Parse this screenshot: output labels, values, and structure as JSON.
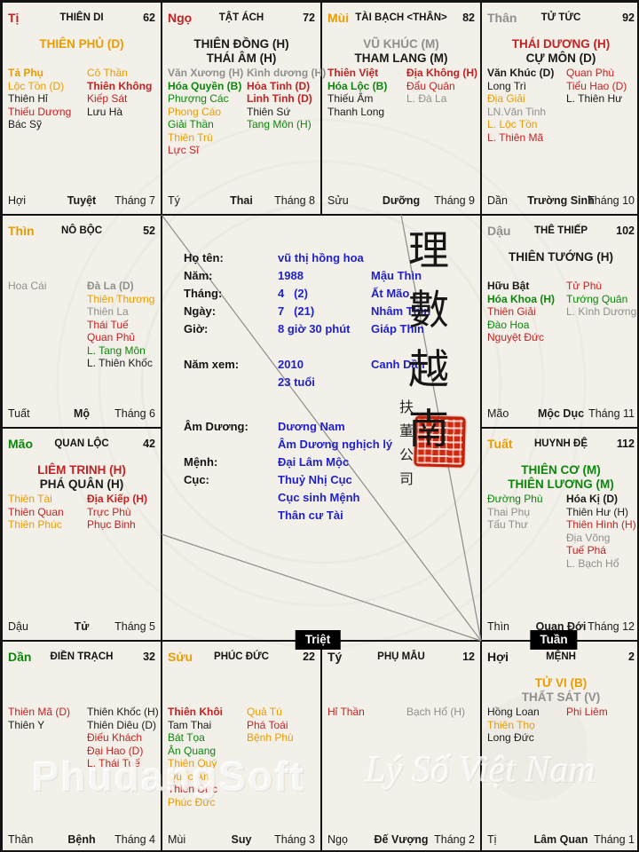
{
  "meta": {
    "colors": {
      "red": "#c32222",
      "orange": "#ea9c00",
      "green": "#0c870c",
      "gray": "#8f8f8f",
      "black": "#1a1a1a",
      "blue": "#2121cc"
    }
  },
  "badges": {
    "triet": "Triệt",
    "tuan": "Tuần"
  },
  "watermarks": {
    "left": "PhudangSoft",
    "right": "Lý Số Việt Nam"
  },
  "center": {
    "calligraphy": [
      "理",
      "數",
      "越",
      "南"
    ],
    "side_text": "扶董公司",
    "groups": [
      {
        "rows": [
          {
            "label": "Họ tên:",
            "value": "vũ thị hồng hoa",
            "note": ""
          },
          {
            "label": "Năm:",
            "value": "1988",
            "note": "Mậu Thìn"
          },
          {
            "label": "Tháng:",
            "value": "4   (2)",
            "note": "Ất Mão"
          },
          {
            "label": "Ngày:",
            "value": "7   (21)",
            "note": "Nhâm Thìn"
          },
          {
            "label": "Giờ:",
            "value": "8 giờ 30 phút",
            "note": "Giáp Thìn"
          }
        ]
      },
      {
        "rows": [
          {
            "label": "Năm xem:",
            "value": "2010",
            "note": "Canh Dần"
          },
          {
            "label": "",
            "value": "23 tuổi",
            "note": ""
          }
        ]
      },
      {
        "rows": [
          {
            "label": "Âm Dương:",
            "value": "Dương Nam",
            "note": ""
          },
          {
            "label": "",
            "value": "Âm Dương nghịch lý",
            "note": ""
          },
          {
            "label": "Mệnh:",
            "value": "Đại Lâm Mộc",
            "note": ""
          },
          {
            "label": "Cục:",
            "value": "Thuỷ Nhị Cục",
            "note": ""
          },
          {
            "label": "",
            "value": "Cục sinh Mệnh",
            "note": ""
          },
          {
            "label": "",
            "value": "Thân cư Tài",
            "note": ""
          }
        ]
      }
    ]
  },
  "palaces": [
    {
      "id": "ti",
      "col": 0,
      "row": 0,
      "branch": "Tị",
      "branch_color": "red",
      "name": "THIÊN DI",
      "number": "62",
      "mains": [
        {
          "text": "THIÊN PHỦ (D)",
          "color": "orange"
        }
      ],
      "left": [
        {
          "text": "Tả Phụ",
          "color": "orange",
          "bold": true
        },
        {
          "text": "Lộc Tồn (D)",
          "color": "orange"
        },
        {
          "text": "Thiên Hỉ",
          "color": "black"
        },
        {
          "text": "Thiếu Dương",
          "color": "red"
        },
        {
          "text": "Bác Sỹ",
          "color": "black"
        }
      ],
      "right": [
        {
          "text": "Cô Thần",
          "color": "orange"
        },
        {
          "text": "Thiên Không",
          "color": "red",
          "bold": true
        },
        {
          "text": "Kiếp Sát",
          "color": "red"
        },
        {
          "text": "Lưu Hà",
          "color": "black"
        }
      ],
      "foot": {
        "branch": "Hợi",
        "stage": "Tuyệt",
        "month": "Tháng 7"
      }
    },
    {
      "id": "ngo",
      "col": 1,
      "row": 0,
      "branch": "Ngọ",
      "branch_color": "red",
      "name": "TẬT ÁCH",
      "number": "72",
      "mains": [
        {
          "text": "THIÊN ĐỒNG (H)",
          "color": "black"
        },
        {
          "text": "THÁI ÂM (H)",
          "color": "black"
        }
      ],
      "left": [
        {
          "text": "Văn Xương (H)",
          "color": "gray",
          "bold": true
        },
        {
          "text": "Hóa Quyền (B)",
          "color": "green",
          "bold": true
        },
        {
          "text": "Phượng Các",
          "color": "green"
        },
        {
          "text": "Phong Cáo",
          "color": "orange"
        },
        {
          "text": "Giải Thần",
          "color": "green"
        },
        {
          "text": "Thiên Trù",
          "color": "orange"
        },
        {
          "text": "Lực Sĩ",
          "color": "red"
        }
      ],
      "right": [
        {
          "text": "Kình dương (H)",
          "color": "gray",
          "bold": true
        },
        {
          "text": "Hỏa Tinh (D)",
          "color": "red",
          "bold": true
        },
        {
          "text": "Linh Tinh (D)",
          "color": "red",
          "bold": true
        },
        {
          "text": "Thiên Sứ",
          "color": "black"
        },
        {
          "text": "Tang Môn (H)",
          "color": "green"
        }
      ],
      "foot": {
        "branch": "Tý",
        "stage": "Thai",
        "month": "Tháng 8"
      }
    },
    {
      "id": "mui",
      "col": 2,
      "row": 0,
      "branch": "Mùi",
      "branch_color": "orange",
      "name": "TÀI BẠCH <THÂN>",
      "number": "82",
      "mains": [
        {
          "text": "VŨ KHÚC (M)",
          "color": "gray"
        },
        {
          "text": "THAM LANG (M)",
          "color": "black"
        }
      ],
      "left": [
        {
          "text": "Thiên Việt",
          "color": "red",
          "bold": true
        },
        {
          "text": "Hóa Lộc (B)",
          "color": "green",
          "bold": true
        },
        {
          "text": "Thiếu Âm",
          "color": "black"
        },
        {
          "text": "Thanh Long",
          "color": "black"
        }
      ],
      "right": [
        {
          "text": "Địa Không (H)",
          "color": "red",
          "bold": true
        },
        {
          "text": "Đẩu Quân",
          "color": "red"
        },
        {
          "text": "L. Đà La",
          "color": "gray"
        }
      ],
      "foot": {
        "branch": "Sửu",
        "stage": "Dưỡng",
        "month": "Tháng 9"
      }
    },
    {
      "id": "than",
      "col": 3,
      "row": 0,
      "branch": "Thân",
      "branch_color": "gray",
      "name": "TỬ TỨC",
      "number": "92",
      "mains": [
        {
          "text": "THÁI DƯƠNG (H)",
          "color": "red"
        },
        {
          "text": "CỰ MÔN (D)",
          "color": "black"
        }
      ],
      "left": [
        {
          "text": "Văn Khúc (D)",
          "color": "black",
          "bold": true
        },
        {
          "text": "Long Trì",
          "color": "black"
        },
        {
          "text": "Địa Giải",
          "color": "orange"
        },
        {
          "text": "LN.Văn Tinh",
          "color": "gray"
        },
        {
          "text": "L. Lộc Tồn",
          "color": "orange"
        },
        {
          "text": "L. Thiên Mã",
          "color": "red"
        }
      ],
      "right": [
        {
          "text": "Quan Phù",
          "color": "red"
        },
        {
          "text": "Tiểu Hao (D)",
          "color": "red"
        },
        {
          "text": "L. Thiên Hư",
          "color": "black"
        }
      ],
      "foot": {
        "branch": "Dần",
        "stage": "Trường Sinh",
        "month": "Tháng 10"
      }
    },
    {
      "id": "thin",
      "col": 0,
      "row": 1,
      "branch": "Thìn",
      "branch_color": "orange",
      "name": "NÔ BỘC",
      "number": "52",
      "mains": [],
      "left": [
        {
          "text": "Hoa Cái",
          "color": "gray"
        }
      ],
      "right": [
        {
          "text": "Đà La (D)",
          "color": "gray",
          "bold": true
        },
        {
          "text": "Thiên Thương",
          "color": "orange"
        },
        {
          "text": "Thiên La",
          "color": "gray"
        },
        {
          "text": "Thái Tuế",
          "color": "red"
        },
        {
          "text": "Quan Phủ",
          "color": "red"
        },
        {
          "text": "L. Tang Môn",
          "color": "green"
        },
        {
          "text": "L. Thiên Khốc",
          "color": "black"
        }
      ],
      "foot": {
        "branch": "Tuất",
        "stage": "Mộ",
        "month": "Tháng 6"
      }
    },
    {
      "id": "dau",
      "col": 3,
      "row": 1,
      "branch": "Dậu",
      "branch_color": "gray",
      "name": "THÊ THIẾP",
      "number": "102",
      "mains": [
        {
          "text": "THIÊN TƯỚNG (H)",
          "color": "black"
        }
      ],
      "left": [
        {
          "text": "Hữu Bật",
          "color": "black",
          "bold": true
        },
        {
          "text": "Hóa Khoa (H)",
          "color": "green",
          "bold": true
        },
        {
          "text": "Thiên Giải",
          "color": "red"
        },
        {
          "text": "Đào Hoa",
          "color": "green"
        },
        {
          "text": "Nguyệt Đức",
          "color": "red"
        }
      ],
      "right": [
        {
          "text": "Tử Phù",
          "color": "red"
        },
        {
          "text": "Tướng Quân",
          "color": "green"
        },
        {
          "text": "L. Kình Dương",
          "color": "gray"
        }
      ],
      "foot": {
        "branch": "Mão",
        "stage": "Mộc Dục",
        "month": "Tháng 11"
      }
    },
    {
      "id": "mao",
      "col": 0,
      "row": 2,
      "branch": "Mão",
      "branch_color": "green",
      "name": "QUAN LỘC",
      "number": "42",
      "mains": [
        {
          "text": "LIÊM TRINH (H)",
          "color": "red"
        },
        {
          "text": "PHÁ QUÂN (H)",
          "color": "black"
        }
      ],
      "left": [
        {
          "text": "Thiên Tài",
          "color": "orange"
        },
        {
          "text": "Thiên Quan",
          "color": "red"
        },
        {
          "text": "Thiên Phúc",
          "color": "orange"
        }
      ],
      "right": [
        {
          "text": "Địa Kiếp (H)",
          "color": "red",
          "bold": true
        },
        {
          "text": "Trực Phù",
          "color": "red"
        },
        {
          "text": "Phục Binh",
          "color": "red"
        }
      ],
      "foot": {
        "branch": "Dậu",
        "stage": "Tử",
        "month": "Tháng 5"
      }
    },
    {
      "id": "tuat",
      "col": 3,
      "row": 2,
      "branch": "Tuất",
      "branch_color": "orange",
      "name": "HUYNH ĐỆ",
      "number": "112",
      "mains": [
        {
          "text": "THIÊN CƠ (M)",
          "color": "green"
        },
        {
          "text": "THIÊN LƯƠNG (M)",
          "color": "green"
        }
      ],
      "left": [
        {
          "text": "Đường Phù",
          "color": "green"
        },
        {
          "text": "Thai Phụ",
          "color": "gray"
        },
        {
          "text": "Tấu Thư",
          "color": "gray"
        }
      ],
      "right": [
        {
          "text": "Hóa Kị (D)",
          "color": "black",
          "bold": true
        },
        {
          "text": "Thiên Hư (H)",
          "color": "black"
        },
        {
          "text": "Thiên Hình (H)",
          "color": "red"
        },
        {
          "text": "Địa Võng",
          "color": "gray"
        },
        {
          "text": "Tuế Phá",
          "color": "red"
        },
        {
          "text": "L. Bạch Hổ",
          "color": "gray"
        }
      ],
      "foot": {
        "branch": "Thìn",
        "stage": "Quan Đới",
        "month": "Tháng 12"
      }
    },
    {
      "id": "dan",
      "col": 0,
      "row": 3,
      "branch": "Dần",
      "branch_color": "green",
      "name": "ĐIỀN TRẠCH",
      "number": "32",
      "mains": [],
      "left": [
        {
          "text": "Thiên Mã (D)",
          "color": "red"
        },
        {
          "text": "Thiên Y",
          "color": "black"
        }
      ],
      "right": [
        {
          "text": "Thiên Khốc (H)",
          "color": "black"
        },
        {
          "text": "Thiên Diêu (D)",
          "color": "black"
        },
        {
          "text": "Điếu Khách",
          "color": "red"
        },
        {
          "text": "Đại Hao (D)",
          "color": "red"
        },
        {
          "text": "L. Thái Tuế",
          "color": "red"
        }
      ],
      "foot": {
        "branch": "Thân",
        "stage": "Bệnh",
        "month": "Tháng 4"
      }
    },
    {
      "id": "suu",
      "col": 1,
      "row": 3,
      "branch": "Sửu",
      "branch_color": "orange",
      "name": "PHÚC ĐỨC",
      "number": "22",
      "mains": [],
      "left": [
        {
          "text": "Thiên Khôi",
          "color": "red",
          "bold": true
        },
        {
          "text": "Tam Thai",
          "color": "black"
        },
        {
          "text": "Bát Tọa",
          "color": "green"
        },
        {
          "text": "Ân Quang",
          "color": "green"
        },
        {
          "text": "Thiên Quý",
          "color": "orange"
        },
        {
          "text": "Quốc Ấn",
          "color": "orange"
        },
        {
          "text": "Thiên Đức",
          "color": "red"
        },
        {
          "text": "Phúc Đức",
          "color": "orange"
        }
      ],
      "right": [
        {
          "text": "Quả Tú",
          "color": "orange"
        },
        {
          "text": "Phá Toái",
          "color": "red"
        },
        {
          "text": "Bệnh Phù",
          "color": "orange"
        }
      ],
      "foot": {
        "branch": "Mùi",
        "stage": "Suy",
        "month": "Tháng 3"
      }
    },
    {
      "id": "ty",
      "col": 2,
      "row": 3,
      "branch": "Tý",
      "branch_color": "black",
      "name": "PHỤ MẪU",
      "number": "12",
      "mains": [],
      "left": [
        {
          "text": "Hỉ Thần",
          "color": "red"
        }
      ],
      "right": [
        {
          "text": "Bạch Hổ (H)",
          "color": "gray"
        }
      ],
      "foot": {
        "branch": "Ngọ",
        "stage": "Đế Vượng",
        "month": "Tháng 2"
      }
    },
    {
      "id": "hoi",
      "col": 3,
      "row": 3,
      "branch": "Hợi",
      "branch_color": "black",
      "name": "MỆNH",
      "number": "2",
      "mains": [
        {
          "text": "TỬ VI (B)",
          "color": "orange"
        },
        {
          "text": "THẤT SÁT (V)",
          "color": "gray"
        }
      ],
      "left": [
        {
          "text": "Hồng Loan",
          "color": "black"
        },
        {
          "text": "Thiên Thọ",
          "color": "orange"
        },
        {
          "text": "Long Đức",
          "color": "black"
        }
      ],
      "right": [
        {
          "text": "Phi Liêm",
          "color": "red"
        }
      ],
      "foot": {
        "branch": "Tị",
        "stage": "Lâm Quan",
        "month": "Tháng 1"
      }
    }
  ]
}
